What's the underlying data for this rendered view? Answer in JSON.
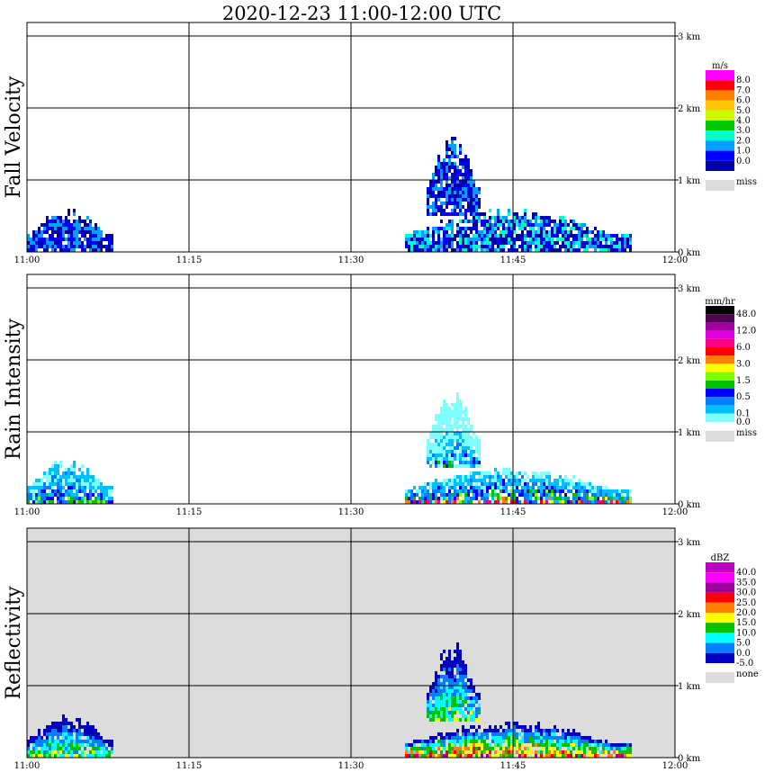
{
  "title": "2020-12-23   11:00-12:00 UTC",
  "colors": {
    "background": "#ffffff",
    "missing": "#dcdcdc",
    "grid": "#000000"
  },
  "chart_data": [
    {
      "type": "heatmap",
      "ylabel": "Fall Velocity",
      "x_ticks": [
        "11:00",
        "11:15",
        "11:30",
        "11:45",
        "12:00"
      ],
      "y_ticks": [
        "0 km",
        "1 km",
        "2 km",
        "3 km"
      ],
      "xlim": [
        "11:00",
        "12:00"
      ],
      "ylim": [
        0,
        3.15
      ],
      "grid": true,
      "background": "white",
      "colorbar": {
        "unit": "m/s",
        "labels": [
          "8.0",
          "7.0",
          "6.0",
          "5.0",
          "4.0",
          "3.0",
          "2.0",
          "1.0",
          "0.0"
        ],
        "colors": [
          "#ff00ff",
          "#ff0000",
          "#ff7f00",
          "#ffc800",
          "#c8ff00",
          "#00c800",
          "#00ffc8",
          "#00a0ff",
          "#0000ff",
          "#0000a0"
        ],
        "missing_label": "miss"
      },
      "echoes": [
        {
          "time": "11:00-11:08",
          "height_km": [
            0,
            0.6
          ],
          "value": "0.0-2.0"
        },
        {
          "time": "11:35-11:56",
          "height_km": [
            0,
            0.6
          ],
          "value": "0.0-3.0"
        },
        {
          "time": "11:37-11:42",
          "height_km": [
            0.5,
            1.6
          ],
          "value": "1.0-2.0"
        }
      ]
    },
    {
      "type": "heatmap",
      "ylabel": "Rain Intensity",
      "x_ticks": [
        "11:00",
        "11:15",
        "11:30",
        "11:45",
        "12:00"
      ],
      "y_ticks": [
        "0 km",
        "1 km",
        "2 km",
        "3 km"
      ],
      "xlim": [
        "11:00",
        "12:00"
      ],
      "ylim": [
        0,
        3.15
      ],
      "grid": true,
      "background": "white",
      "colorbar": {
        "unit": "mm/hr",
        "labels": [
          "48.0",
          "",
          "12.0",
          "",
          "6.0",
          "",
          "3.0",
          "",
          "1.5",
          "",
          "0.5",
          "",
          "0.1",
          "0.0"
        ],
        "colors": [
          "#000000",
          "#500050",
          "#a000a0",
          "#e000e0",
          "#ff0080",
          "#ff0000",
          "#ff8000",
          "#ffff00",
          "#80ff00",
          "#00c000",
          "#0000ff",
          "#0080ff",
          "#00c0ff",
          "#80ffff"
        ],
        "missing_label": "miss"
      },
      "echoes": [
        {
          "time": "11:00-11:08",
          "height_km": [
            0,
            0.6
          ],
          "value": "0.1-3.0"
        },
        {
          "time": "11:35-11:56",
          "height_km": [
            0,
            0.5
          ],
          "value": "0.1-12.0"
        },
        {
          "time": "11:37-11:42",
          "height_km": [
            0.5,
            1.6
          ],
          "value": "0.0-0.1"
        }
      ]
    },
    {
      "type": "heatmap",
      "ylabel": "Reflectivity",
      "x_ticks": [
        "11:00",
        "11:15",
        "11:30",
        "11:45",
        "12:00"
      ],
      "y_ticks": [
        "0 km",
        "1 km",
        "2 km",
        "3 km"
      ],
      "xlim": [
        "11:00",
        "12:00"
      ],
      "ylim": [
        0,
        3.15
      ],
      "grid": true,
      "background": "gray",
      "colorbar": {
        "unit": "dBZ",
        "labels": [
          "40.0",
          "35.0",
          "30.0",
          "25.0",
          "20.0",
          "15.0",
          "10.0",
          "5.0",
          "0.0",
          "-5.0"
        ],
        "colors": [
          "#c000c0",
          "#ff00ff",
          "#a000a0",
          "#ff0000",
          "#ff8000",
          "#ffff00",
          "#00c000",
          "#00ffff",
          "#0080ff",
          "#0000c0"
        ],
        "missing_label": "none"
      },
      "echoes": [
        {
          "time": "11:00-11:08",
          "height_km": [
            0,
            0.6
          ],
          "value": "-5.0-20.0"
        },
        {
          "time": "11:35-11:56",
          "height_km": [
            0,
            0.5
          ],
          "value": "0.0-25.0"
        },
        {
          "time": "11:37-11:42",
          "height_km": [
            0.5,
            1.6
          ],
          "value": "-5.0-10.0"
        }
      ]
    }
  ]
}
